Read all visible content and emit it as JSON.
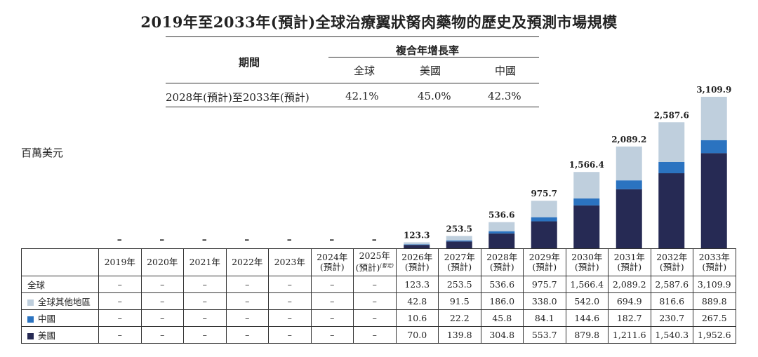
{
  "title": "2019年至2033年(預計)全球治療翼狀胬肉藥物的歷史及預測市場規模",
  "cagr_table": {
    "period_header": "期間",
    "cagr_header": "複合年增長率",
    "columns": [
      "全球",
      "美國",
      "中國"
    ],
    "row": {
      "period": "2028年(預計)至2033年(預計)",
      "values": [
        "42.1%",
        "45.0%",
        "42.3%"
      ]
    }
  },
  "unit_label": "百萬美元",
  "colors": {
    "rest_of_world": "#bfcfdd",
    "china": "#2b73c0",
    "usa": "#262a54"
  },
  "chart_data": {
    "type": "bar",
    "stacked": true,
    "categories": [
      "2019年",
      "2020年",
      "2021年",
      "2022年",
      "2023年",
      "2024年(預計)",
      "2025年(預計)",
      "2026年(預計)",
      "2027年(預計)",
      "2028年(預計)",
      "2029年(預計)",
      "2030年(預計)",
      "2031年(預計)",
      "2032年(預計)",
      "2033年(預計)"
    ],
    "category_lines": [
      [
        "2019年"
      ],
      [
        "2020年"
      ],
      [
        "2021年"
      ],
      [
        "2022年"
      ],
      [
        "2023年"
      ],
      [
        "2024年",
        "(預計)"
      ],
      [
        "2025年",
        "(預計)"
      ],
      [
        "2026年",
        "(預計)"
      ],
      [
        "2027年",
        "(預計)"
      ],
      [
        "2028年",
        "(預計)"
      ],
      [
        "2029年",
        "(預計)"
      ],
      [
        "2030年",
        "(預計)"
      ],
      [
        "2031年",
        "(預計)"
      ],
      [
        "2032年",
        "(預計)"
      ],
      [
        "2033年",
        "(預計)"
      ]
    ],
    "category_note": {
      "index": 6,
      "text": "(暫定)"
    },
    "totals_labels": [
      "–",
      "–",
      "–",
      "–",
      "–",
      "–",
      "–",
      "123.3",
      "253.5",
      "536.6",
      "975.7",
      "1,566.4",
      "2,089.2",
      "2,587.6",
      "3,109.9"
    ],
    "totals": [
      null,
      null,
      null,
      null,
      null,
      null,
      null,
      123.3,
      253.5,
      536.6,
      975.7,
      1566.4,
      2089.2,
      2587.6,
      3109.9
    ],
    "series": [
      {
        "name": "美國",
        "color": "#262a54",
        "values": [
          null,
          null,
          null,
          null,
          null,
          null,
          null,
          70.0,
          139.8,
          304.8,
          553.7,
          879.8,
          1211.6,
          1540.3,
          1952.6
        ]
      },
      {
        "name": "中國",
        "color": "#2b73c0",
        "values": [
          null,
          null,
          null,
          null,
          null,
          null,
          null,
          10.6,
          22.2,
          45.8,
          84.1,
          144.6,
          182.7,
          230.7,
          267.5
        ]
      },
      {
        "name": "全球其他地區",
        "color": "#bfcfdd",
        "values": [
          null,
          null,
          null,
          null,
          null,
          null,
          null,
          42.8,
          91.5,
          186.0,
          338.0,
          542.0,
          694.9,
          816.6,
          889.8
        ]
      }
    ],
    "ylim": [
      0,
      3109.9
    ]
  },
  "table": {
    "rows": [
      {
        "label": "全球",
        "swatch": null,
        "values": [
          "–",
          "–",
          "–",
          "–",
          "–",
          "–",
          "–",
          "123.3",
          "253.5",
          "536.6",
          "975.7",
          "1,566.4",
          "2,089.2",
          "2,587.6",
          "3,109.9"
        ]
      },
      {
        "label": "全球其他地區",
        "swatch": "#bfcfdd",
        "values": [
          "–",
          "–",
          "–",
          "–",
          "–",
          "–",
          "–",
          "42.8",
          "91.5",
          "186.0",
          "338.0",
          "542.0",
          "694.9",
          "816.6",
          "889.8"
        ]
      },
      {
        "label": "中國",
        "swatch": "#2b73c0",
        "values": [
          "–",
          "–",
          "–",
          "–",
          "–",
          "–",
          "–",
          "10.6",
          "22.2",
          "45.8",
          "84.1",
          "144.6",
          "182.7",
          "230.7",
          "267.5"
        ]
      },
      {
        "label": "美國",
        "swatch": "#262a54",
        "values": [
          "–",
          "–",
          "–",
          "–",
          "–",
          "–",
          "–",
          "70.0",
          "139.8",
          "304.8",
          "553.7",
          "879.8",
          "1,211.6",
          "1,540.3",
          "1,952.6"
        ]
      }
    ]
  }
}
